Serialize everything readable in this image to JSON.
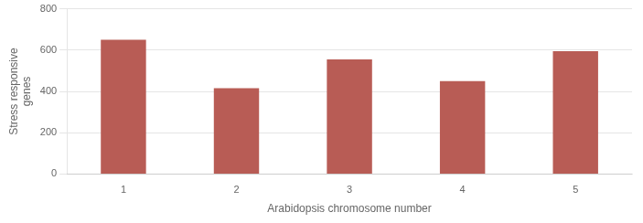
{
  "chart_data": {
    "type": "bar",
    "categories": [
      1,
      2,
      3,
      4,
      5
    ],
    "values": [
      650,
      415,
      555,
      450,
      595
    ],
    "color": "#b85c55",
    "xlabel": "Arabidopsis chromosome number",
    "ylabel": "Stress responsive\ngenes",
    "ylim": [
      0,
      800
    ],
    "yticks": [
      0,
      200,
      400,
      600,
      800
    ],
    "grid": true
  }
}
